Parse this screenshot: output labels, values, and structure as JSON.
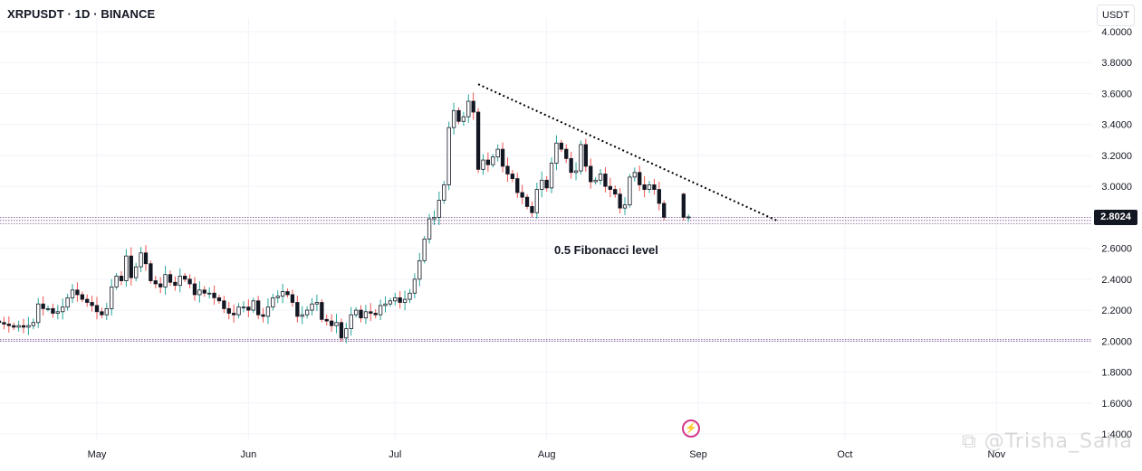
{
  "header": {
    "symbol_title": "XRPUSDT · 1D · BINANCE",
    "currency": "USDT"
  },
  "annotation": "0.5 Fibonacci level",
  "watermark": "@Trisha_Saha",
  "last_price_label": "2.8024",
  "colors": {
    "up": "#26a69a",
    "down": "#ef5350",
    "candle_body": "#131722",
    "level_line": "#7b4a8f",
    "trendline": "#000000"
  },
  "icons": [
    "lightning-bolt-icon",
    "watermark-logo-icon"
  ],
  "chart_data": {
    "type": "candlestick",
    "title": "",
    "xlabel": "",
    "ylabel": "",
    "ylim": [
      1.4,
      4.0
    ],
    "y_ticks": [
      "1.4000",
      "1.6000",
      "1.8000",
      "2.0000",
      "2.2000",
      "2.4000",
      "2.6000",
      "2.8000",
      "3.0000",
      "3.2000",
      "3.4000",
      "3.6000",
      "3.8000",
      "4.0000"
    ],
    "x_ticks": [
      {
        "label": "May",
        "date": "2025-05-01"
      },
      {
        "label": "Jun",
        "date": "2025-06-01"
      },
      {
        "label": "Jul",
        "date": "2025-07-01"
      },
      {
        "label": "Aug",
        "date": "2025-08-01"
      },
      {
        "label": "Sep",
        "date": "2025-09-01"
      },
      {
        "label": "Oct",
        "date": "2025-10-01"
      },
      {
        "label": "Nov",
        "date": "2025-11-01"
      }
    ],
    "start_date": "2025-04-07",
    "horizontal_levels": [
      2.0,
      2.01,
      2.8,
      2.78,
      2.76
    ],
    "trendline": {
      "from": {
        "date": "2025-07-18",
        "price": 3.66
      },
      "to": {
        "date": "2025-09-17",
        "price": 2.78
      }
    },
    "last_price": 2.8024,
    "closes": [
      1.96,
      2.14,
      2.17,
      2.13,
      2.12,
      2.11,
      2.1,
      2.09,
      2.1,
      2.09,
      2.1,
      2.12,
      2.24,
      2.21,
      2.21,
      2.18,
      2.19,
      2.22,
      2.28,
      2.33,
      2.3,
      2.27,
      2.25,
      2.23,
      2.19,
      2.17,
      2.21,
      2.35,
      2.42,
      2.39,
      2.55,
      2.41,
      2.48,
      2.57,
      2.5,
      2.39,
      2.37,
      2.35,
      2.43,
      2.38,
      2.36,
      2.42,
      2.4,
      2.37,
      2.3,
      2.33,
      2.31,
      2.31,
      2.28,
      2.26,
      2.21,
      2.18,
      2.17,
      2.22,
      2.22,
      2.2,
      2.26,
      2.17,
      2.16,
      2.22,
      2.28,
      2.29,
      2.32,
      2.3,
      2.25,
      2.16,
      2.17,
      2.2,
      2.24,
      2.25,
      2.14,
      2.13,
      2.1,
      2.12,
      2.02,
      2.08,
      2.17,
      2.2,
      2.15,
      2.19,
      2.18,
      2.17,
      2.23,
      2.24,
      2.26,
      2.28,
      2.25,
      2.27,
      2.31,
      2.4,
      2.52,
      2.66,
      2.79,
      2.8,
      2.91,
      3.01,
      3.38,
      3.49,
      3.42,
      3.45,
      3.55,
      3.48,
      3.11,
      3.17,
      3.14,
      3.19,
      3.24,
      3.13,
      3.08,
      3.05,
      2.96,
      2.93,
      2.87,
      2.83,
      2.98,
      3.04,
      2.99,
      3.15,
      3.28,
      3.24,
      3.18,
      3.09,
      3.1,
      3.27,
      3.13,
      3.03,
      3.04,
      3.08,
      3.0,
      2.98,
      2.95,
      2.86,
      2.88,
      3.06,
      3.09,
      3.01,
      2.98,
      3.01,
      2.98,
      2.89,
      2.8
    ],
    "ohlc": [
      {
        "date": "2025-08-29",
        "open": 2.95,
        "high": 2.96,
        "low": 2.78,
        "close": 2.8
      },
      {
        "date": "2025-08-30",
        "open": 2.8,
        "high": 2.82,
        "low": 2.77,
        "close": 2.8024
      }
    ]
  }
}
